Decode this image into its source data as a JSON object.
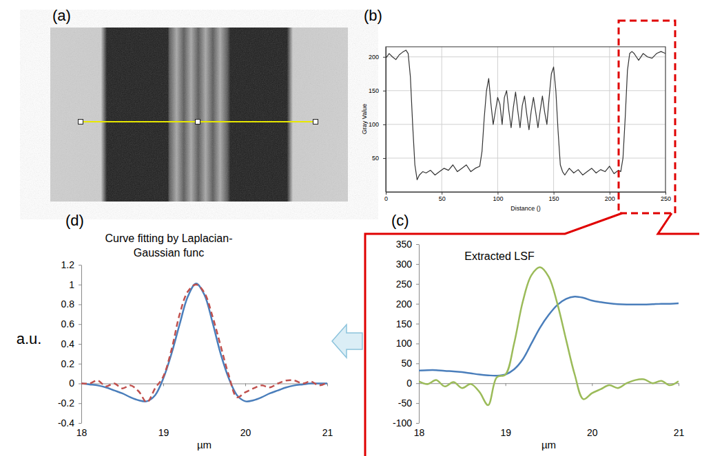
{
  "chart_data": [
    {
      "type": "image",
      "panel": "(a)"
    },
    {
      "type": "line",
      "panel": "(b)",
      "x_label": "Distance ()",
      "y_label": "Gray Value",
      "x": [
        0,
        3,
        6,
        9,
        12,
        15,
        18,
        20,
        22,
        24,
        26,
        28,
        30,
        33,
        36,
        40,
        44,
        48,
        52,
        56,
        60,
        64,
        68,
        72,
        76,
        80,
        84,
        86,
        88,
        90,
        92,
        94,
        96,
        98,
        100,
        102,
        104,
        106,
        108,
        110,
        112,
        114,
        116,
        118,
        120,
        122,
        124,
        126,
        128,
        130,
        132,
        134,
        136,
        138,
        140,
        142,
        144,
        146,
        148,
        150,
        152,
        154,
        156,
        158,
        160,
        164,
        168,
        172,
        176,
        180,
        184,
        188,
        192,
        196,
        200,
        204,
        208,
        210,
        212,
        214,
        216,
        218,
        220,
        222,
        224,
        226,
        230,
        234,
        238,
        242,
        246,
        250
      ],
      "values": [
        198,
        205,
        200,
        196,
        203,
        207,
        210,
        205,
        170,
        100,
        40,
        18,
        25,
        30,
        28,
        32,
        25,
        30,
        35,
        32,
        40,
        30,
        35,
        40,
        30,
        35,
        38,
        60,
        110,
        150,
        168,
        130,
        100,
        120,
        140,
        130,
        100,
        140,
        150,
        120,
        95,
        125,
        148,
        120,
        95,
        128,
        142,
        115,
        92,
        120,
        140,
        118,
        95,
        120,
        142,
        118,
        100,
        140,
        175,
        185,
        150,
        90,
        40,
        30,
        25,
        35,
        28,
        33,
        25,
        30,
        35,
        28,
        33,
        30,
        38,
        27,
        32,
        30,
        50,
        110,
        180,
        205,
        208,
        205,
        200,
        195,
        205,
        200,
        198,
        205,
        208,
        205
      ],
      "color": "#333333",
      "xlim": [
        0,
        250
      ],
      "ylim": [
        0,
        215
      ],
      "xticks": [
        0,
        50,
        100,
        150,
        200,
        250
      ],
      "yticks": [
        50,
        100,
        150,
        200
      ],
      "grid": true
    },
    {
      "type": "line",
      "panel": "(c)",
      "title": "Extracted LSF",
      "x_label": "µm",
      "x": [
        18,
        18.1,
        18.2,
        18.3,
        18.4,
        18.5,
        18.6,
        18.7,
        18.8,
        18.9,
        19,
        19.1,
        19.2,
        19.3,
        19.4,
        19.5,
        19.6,
        19.7,
        19.8,
        19.9,
        20,
        20.1,
        20.2,
        20.3,
        20.4,
        20.5,
        20.6,
        20.7,
        20.8,
        20.9,
        21
      ],
      "series": [
        {
          "color": "#4a7ebb",
          "values": [
            32,
            33,
            33,
            31,
            30,
            28,
            25,
            22,
            20,
            19,
            22,
            35,
            60,
            100,
            140,
            172,
            197,
            212,
            218,
            215,
            208,
            204,
            201,
            199,
            198,
            198,
            198,
            199,
            200,
            200,
            201
          ]
        },
        {
          "color": "#9bbb59",
          "values": [
            5,
            -2,
            8,
            -8,
            3,
            -12,
            -2,
            -22,
            -55,
            15,
            22,
            100,
            205,
            272,
            292,
            268,
            200,
            110,
            22,
            -40,
            -25,
            -15,
            -5,
            -12,
            0,
            8,
            10,
            0,
            6,
            -5,
            5
          ]
        }
      ],
      "xlim": [
        18,
        21
      ],
      "ylim": [
        -100,
        350
      ],
      "xticks": [
        18,
        19,
        20,
        21
      ],
      "yticks": [
        -100,
        -50,
        0,
        50,
        100,
        150,
        200,
        250,
        300,
        350
      ],
      "grid": false
    },
    {
      "type": "line",
      "panel": "(d)",
      "title": "Curve fitting by Laplacian-Gaussian func",
      "x_label": "µm",
      "y_label": "a.u.",
      "x": [
        18,
        18.1,
        18.2,
        18.3,
        18.4,
        18.5,
        18.6,
        18.7,
        18.8,
        18.9,
        19,
        19.1,
        19.2,
        19.3,
        19.4,
        19.5,
        19.6,
        19.7,
        19.8,
        19.9,
        20,
        20.1,
        20.2,
        20.3,
        20.4,
        20.5,
        20.6,
        20.7,
        20.8,
        20.9,
        21
      ],
      "series": [
        {
          "color": "#4a7ebb",
          "line_style": "solid",
          "values": [
            0,
            -0.01,
            -0.02,
            -0.04,
            -0.07,
            -0.1,
            -0.14,
            -0.17,
            -0.18,
            -0.12,
            0.05,
            0.3,
            0.6,
            0.88,
            1.01,
            0.9,
            0.62,
            0.3,
            0.05,
            -0.12,
            -0.18,
            -0.17,
            -0.14,
            -0.1,
            -0.07,
            -0.04,
            -0.02,
            -0.01,
            0,
            0,
            0
          ]
        },
        {
          "color": "#c0504d",
          "line_style": "dashed",
          "values": [
            0,
            0,
            0.03,
            -0.03,
            0,
            -0.05,
            -0.02,
            -0.08,
            -0.19,
            -0.05,
            0.07,
            0.34,
            0.7,
            0.93,
            1,
            0.92,
            0.68,
            0.38,
            0.08,
            -0.14,
            -0.09,
            -0.05,
            -0.02,
            -0.04,
            0,
            0.03,
            0.03,
            0,
            0.02,
            -0.02,
            0.01
          ]
        }
      ],
      "xlim": [
        18,
        21
      ],
      "ylim": [
        -0.4,
        1.2
      ],
      "xticks": [
        18,
        19,
        20,
        21
      ],
      "yticks": [
        -0.4,
        -0.2,
        0,
        0.2,
        0.4,
        0.6,
        0.8,
        1,
        1.2
      ],
      "grid": false
    }
  ]
}
